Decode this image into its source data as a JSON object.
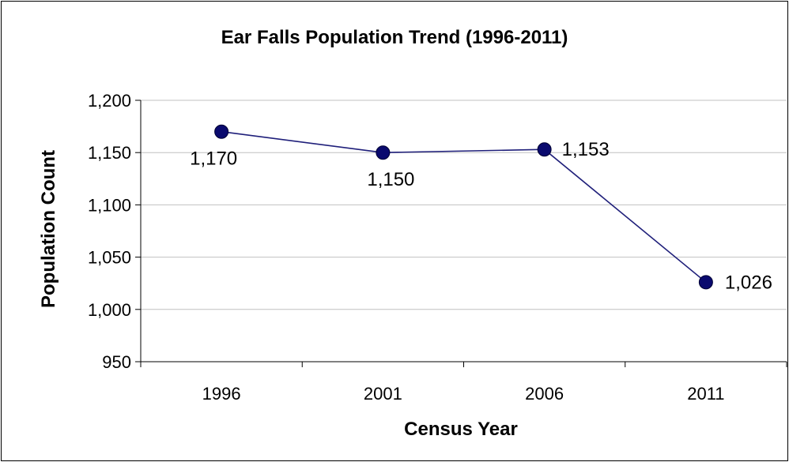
{
  "chart_data": {
    "type": "line",
    "title": "Ear Falls Population Trend (1996-2011)",
    "xlabel": "Census Year",
    "ylabel": "Population Count",
    "categories": [
      "1996",
      "2001",
      "2006",
      "2011"
    ],
    "series": [
      {
        "values": [
          1170,
          1150,
          1153,
          1026
        ],
        "data_labels": [
          "1,170",
          "1,150",
          "1,153",
          "1,026"
        ]
      }
    ],
    "ylim": [
      950,
      1200
    ],
    "yticks": [
      950,
      1000,
      1050,
      1100,
      1150,
      1200
    ],
    "ytick_labels": [
      "950",
      "1,000",
      "1,050",
      "1,100",
      "1,150",
      "1,200"
    ],
    "grid": true,
    "legend": "none",
    "colors": {
      "line": "#1f1f7a",
      "marker": "#0a0a6e",
      "grid": "#c0c0c0",
      "axis": "#000000"
    }
  }
}
